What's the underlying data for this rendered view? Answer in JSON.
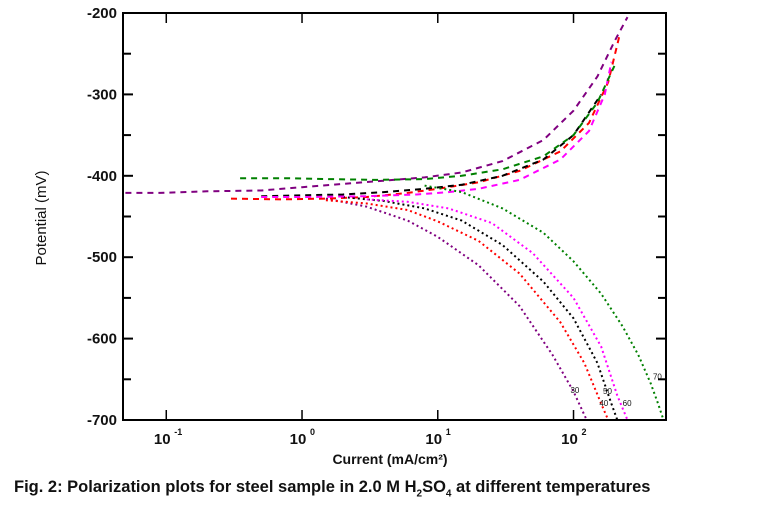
{
  "chart_data": {
    "type": "line",
    "title": "",
    "xlabel": "Current (mA/cm²)",
    "ylabel": "Potential (mV)",
    "xscale": "log",
    "xlim": [
      0.048,
      480
    ],
    "ylim": [
      -700,
      -200
    ],
    "x_ticks": [
      {
        "base": "10",
        "exp": "-1",
        "value": 0.1
      },
      {
        "base": "10",
        "exp": "0",
        "value": 1
      },
      {
        "base": "10",
        "exp": "1",
        "value": 10
      },
      {
        "base": "10",
        "exp": "2",
        "value": 100
      }
    ],
    "y_ticks": [
      "-200",
      "-300",
      "-400",
      "-500",
      "-600",
      "-700"
    ],
    "y_tick_values": [
      -200,
      -300,
      -400,
      -500,
      -600,
      -700
    ],
    "grid": false,
    "series": [
      {
        "name": "30",
        "color": "#800080",
        "anodic": {
          "x": [
            0.05,
            0.09,
            0.2,
            0.5,
            1.0,
            2.0,
            4.0,
            8,
            15,
            30,
            60,
            100,
            150,
            200,
            250
          ],
          "y": [
            -421,
            -421,
            -419,
            -418,
            -414,
            -410,
            -406,
            -402,
            -396,
            -382,
            -356,
            -320,
            -278,
            -235,
            -205
          ]
        },
        "cathodic": {
          "x": [
            1.5,
            3,
            6,
            10,
            20,
            40,
            70,
            100,
            125
          ],
          "y": [
            -428,
            -438,
            -455,
            -475,
            -510,
            -560,
            -620,
            -665,
            -700
          ]
        },
        "label_at": [
          95,
          -667
        ]
      },
      {
        "name": "40",
        "color": "#ff0000",
        "anodic": {
          "x": [
            0.3,
            0.7,
            1.5,
            3,
            6,
            10,
            20,
            40,
            80,
            130,
            180,
            220
          ],
          "y": [
            -428,
            -429,
            -428,
            -426,
            -421,
            -416,
            -408,
            -394,
            -370,
            -335,
            -285,
            -225
          ]
        },
        "cathodic": {
          "x": [
            1.5,
            3,
            6,
            10,
            20,
            40,
            80,
            120,
            160,
            180
          ],
          "y": [
            -430,
            -434,
            -442,
            -456,
            -480,
            -520,
            -580,
            -630,
            -680,
            -700
          ]
        },
        "label_at": [
          155,
          -683
        ]
      },
      {
        "name": "50",
        "color": "#000000",
        "anodic": {
          "x": [
            0.5,
            1.0,
            2.0,
            4,
            8,
            15,
            30,
            60,
            100,
            160
          ],
          "y": [
            -425,
            -424,
            -423,
            -420,
            -416,
            -411,
            -400,
            -380,
            -350,
            -300
          ]
        },
        "cathodic": {
          "x": [
            2,
            4,
            8,
            15,
            30,
            60,
            100,
            150,
            190,
            210
          ],
          "y": [
            -426,
            -431,
            -440,
            -455,
            -485,
            -530,
            -575,
            -630,
            -680,
            -700
          ]
        },
        "label_at": [
          165,
          -668
        ]
      },
      {
        "name": "60",
        "color": "#ff00ff",
        "anodic": {
          "x": [
            0.5,
            1.0,
            3,
            7,
            12,
            20,
            40,
            80,
            130,
            170,
            190
          ],
          "y": [
            -426,
            -426,
            -425,
            -423,
            -420,
            -416,
            -405,
            -380,
            -345,
            -300,
            -260
          ]
        },
        "cathodic": {
          "x": [
            3,
            6,
            12,
            25,
            50,
            100,
            160,
            210,
            250
          ],
          "y": [
            -429,
            -432,
            -440,
            -458,
            -495,
            -550,
            -610,
            -670,
            -700
          ]
        },
        "label_at": [
          230,
          -683
        ]
      },
      {
        "name": "70",
        "color": "#008000",
        "anodic": {
          "x": [
            0.35,
            0.8,
            1.6,
            3.5,
            8,
            15,
            30,
            60,
            100,
            150,
            200
          ],
          "y": [
            -403,
            -403,
            -404,
            -405,
            -404,
            -400,
            -392,
            -376,
            -350,
            -310,
            -265
          ]
        },
        "cathodic": {
          "x": [
            8,
            15,
            30,
            60,
            100,
            160,
            230,
            300,
            370,
            420,
            460
          ],
          "y": [
            -412,
            -420,
            -440,
            -470,
            -505,
            -545,
            -585,
            -620,
            -655,
            -680,
            -700
          ]
        },
        "label_at": [
          385,
          -650
        ]
      }
    ]
  },
  "caption": {
    "prefix": "Fig. 2: Polarization plots for steel sample in 2.0 M H",
    "sub1": "2",
    "mid": "SO",
    "sub2": "4",
    "suffix": " at different temperatures"
  }
}
